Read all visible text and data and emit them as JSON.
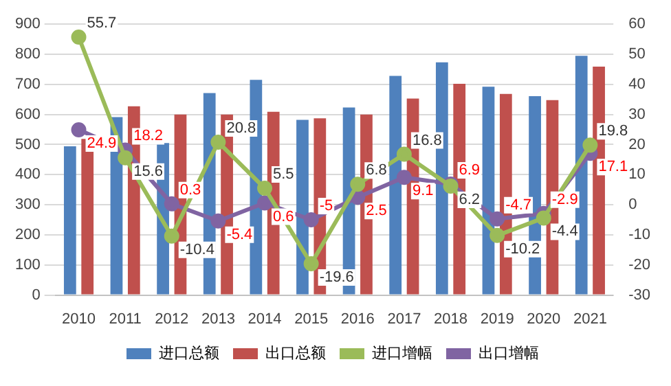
{
  "chart_data": {
    "type": "bar",
    "categories": [
      "2010",
      "2011",
      "2012",
      "2013",
      "2014",
      "2015",
      "2016",
      "2017",
      "2018",
      "2019",
      "2020",
      "2021"
    ],
    "series": [
      {
        "name": "进口总额",
        "color": "#4f81bd",
        "values": [
          494,
          591,
          505,
          671,
          715,
          582,
          623,
          728,
          773,
          692,
          661,
          795
        ]
      },
      {
        "name": "出口总额",
        "color": "#c0504d",
        "values": [
          519,
          627,
          600,
          600,
          609,
          587,
          600,
          653,
          702,
          668,
          648,
          759
        ]
      },
      {
        "name": "进口增幅",
        "type": "line",
        "axis": "y2",
        "color": "#9bbb59",
        "values": [
          55.7,
          15.6,
          -10.4,
          20.8,
          5.5,
          -19.6,
          6.8,
          16.8,
          6.2,
          -10.2,
          -4.4,
          19.8
        ],
        "value_labels": [
          "55.7",
          "15.6",
          "-10.4",
          "20.8",
          "5.5",
          "-19.6",
          "6.8",
          "16.8",
          "6.2",
          "-10.2",
          "-4.4",
          "19.8"
        ]
      },
      {
        "name": "出口增幅",
        "type": "line",
        "axis": "y2",
        "color": "#8064a2",
        "values": [
          24.9,
          18.2,
          0.3,
          -5.4,
          0.6,
          -5,
          2.5,
          9.1,
          6.9,
          -4.7,
          -2.9,
          17.1
        ],
        "value_labels": [
          "24.9",
          "18.2",
          "0.3",
          "-5.4",
          "0.6",
          "-5",
          "2.5",
          "9.1",
          "6.9",
          "-4.7",
          "-2.9",
          "17.1"
        ]
      }
    ],
    "ylim": [
      0,
      900
    ],
    "yticks": [
      0,
      100,
      200,
      300,
      400,
      500,
      600,
      700,
      800,
      900
    ],
    "y2lim": [
      -30,
      60
    ],
    "y2ticks": [
      -30,
      -20,
      -10,
      0,
      10,
      20,
      30,
      40,
      50,
      60
    ],
    "grid": "y",
    "legend": "bottom",
    "marker": "circle",
    "line_style": "solid"
  }
}
